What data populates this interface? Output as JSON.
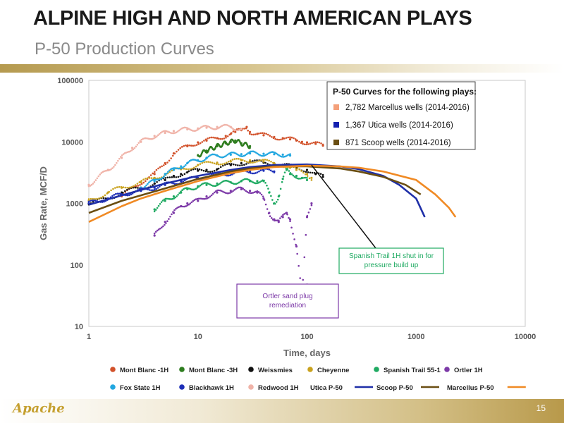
{
  "slide": {
    "title": "ALPINE HIGH AND NORTH AMERICAN PLAYS",
    "subtitle": "P-50 Production Curves",
    "logo_text": "Apache",
    "page_number": "15"
  },
  "chart_data": {
    "type": "scatter",
    "xlabel": "Time, days",
    "ylabel": "Gas Rate, MCF/D",
    "x_scale": "log",
    "y_scale": "log",
    "xlim": [
      1,
      10000
    ],
    "ylim": [
      10,
      100000
    ],
    "x_ticks": [
      "1",
      "10",
      "100",
      "1000",
      "10000"
    ],
    "y_ticks": [
      "10",
      "100",
      "1000",
      "10000",
      "100000"
    ],
    "grid": false,
    "series": [
      {
        "name": "Mont Blanc -1H",
        "kind": "points",
        "color": "#d2522b",
        "x": [
          2,
          3,
          4,
          5,
          6,
          8,
          10,
          12,
          15,
          18,
          20,
          22,
          25,
          28,
          30,
          35,
          40,
          50,
          60,
          70,
          80,
          90,
          100,
          120,
          140
        ],
        "y": [
          1300,
          2200,
          3000,
          4500,
          6500,
          8500,
          9800,
          10500,
          11500,
          12500,
          13500,
          14500,
          15500,
          17500,
          14500,
          13500,
          12800,
          12000,
          11500,
          11000,
          10500,
          10000,
          9800,
          9300,
          8700
        ]
      },
      {
        "name": "Mont Blanc -3H",
        "kind": "points",
        "color": "#2e7d1f",
        "x": [
          10,
          12,
          15,
          18,
          20,
          22,
          25,
          30
        ],
        "y": [
          6000,
          7200,
          8500,
          9500,
          10000,
          10500,
          9500,
          8500
        ]
      },
      {
        "name": "Weissmies",
        "kind": "points",
        "color": "#111111",
        "x": [
          1,
          1.5,
          2,
          3,
          4,
          5,
          6,
          7,
          8,
          10,
          12,
          15,
          20,
          25,
          30,
          40,
          50,
          60,
          70,
          80,
          100,
          120,
          140
        ],
        "y": [
          1000,
          1200,
          1500,
          1800,
          2100,
          2400,
          2800,
          3000,
          3200,
          3400,
          3500,
          3600,
          4200,
          4500,
          4700,
          4600,
          4400,
          4200,
          4000,
          3800,
          3500,
          3000,
          2700
        ]
      },
      {
        "name": "Cheyenne",
        "kind": "points",
        "color": "#c9a21e",
        "x": [
          1,
          1.5,
          2,
          3,
          4,
          5,
          7,
          10,
          15,
          20,
          25,
          30,
          40,
          50,
          60,
          70,
          80,
          100,
          110
        ],
        "y": [
          1100,
          1500,
          1800,
          2200,
          2600,
          3000,
          3600,
          4200,
          4600,
          4800,
          5000,
          5000,
          4800,
          4500,
          4200,
          3800,
          3500,
          3000,
          2600
        ]
      },
      {
        "name": "Spanish Trail 55-1",
        "kind": "points",
        "color": "#1faa62",
        "x": [
          4,
          5,
          6,
          7,
          8,
          10,
          12,
          15,
          20,
          25,
          30,
          35,
          40,
          45,
          50,
          55,
          60,
          65,
          70,
          80,
          90,
          100
        ],
        "y": [
          800,
          1100,
          1300,
          1500,
          1700,
          1900,
          2000,
          2100,
          2200,
          2300,
          2300,
          2300,
          2300,
          1500,
          1000,
          1300,
          2500,
          3500,
          3000,
          2800,
          2600,
          2400
        ]
      },
      {
        "name": "Ortler 1H",
        "kind": "points",
        "color": "#7d3aa8",
        "x": [
          4,
          5,
          6,
          7,
          8,
          10,
          12,
          15,
          20,
          25,
          30,
          35,
          40,
          45,
          50,
          55,
          60,
          65,
          70,
          80,
          90,
          100,
          110
        ],
        "y": [
          300,
          500,
          700,
          900,
          1000,
          1100,
          1300,
          1500,
          1600,
          1700,
          1600,
          1500,
          1200,
          700,
          550,
          500,
          600,
          700,
          550,
          200,
          30,
          600,
          1000
        ]
      },
      {
        "name": "Fox State 1H",
        "kind": "points",
        "color": "#22a7e0",
        "x": [
          3,
          4,
          5,
          6,
          7,
          8,
          10,
          12,
          15,
          20,
          25,
          30,
          40,
          50,
          60,
          70
        ],
        "y": [
          1800,
          2300,
          3000,
          3500,
          4000,
          4500,
          5000,
          5500,
          6000,
          6200,
          6300,
          6500,
          6400,
          6300,
          6200,
          6000
        ]
      },
      {
        "name": "Blackhawk 1H",
        "kind": "points",
        "color": "#1e2fb8",
        "x": [
          1,
          1.5,
          2,
          3,
          4,
          5,
          7,
          10,
          15,
          20,
          30,
          40,
          50
        ],
        "y": [
          1000,
          1200,
          1400,
          1600,
          1800,
          2000,
          2300,
          2600,
          2900,
          3100,
          3300,
          3400,
          3300
        ]
      },
      {
        "name": "Redwood 1H",
        "kind": "points",
        "color": "#f0b3a8",
        "x": [
          1,
          1.5,
          2,
          2.5,
          3,
          4,
          5,
          6,
          8,
          10,
          12,
          15,
          20,
          25
        ],
        "y": [
          2000,
          3500,
          5500,
          8000,
          10000,
          12500,
          14000,
          15000,
          16000,
          16500,
          17000,
          17500,
          17500,
          16000
        ]
      },
      {
        "name": "Utica P-50",
        "kind": "line",
        "color": "#1f2fa8",
        "x": [
          1,
          2,
          3,
          5,
          10,
          20,
          30,
          50,
          100,
          200,
          300,
          500,
          700,
          1000,
          1200
        ],
        "y": [
          950,
          1350,
          1650,
          2100,
          2800,
          3500,
          3900,
          4200,
          4300,
          4000,
          3600,
          2800,
          2000,
          1200,
          600
        ]
      },
      {
        "name": "Scoop P-50",
        "kind": "line",
        "color": "#6a4e12",
        "x": [
          1,
          2,
          3,
          5,
          10,
          20,
          30,
          50,
          100,
          200,
          300,
          500,
          800,
          1100
        ],
        "y": [
          700,
          1100,
          1350,
          1750,
          2500,
          3300,
          3700,
          4000,
          4000,
          3700,
          3300,
          2700,
          2000,
          1400
        ]
      },
      {
        "name": "Marcellus P-50",
        "kind": "line",
        "color": "#f08a24",
        "x": [
          1,
          2,
          3,
          5,
          10,
          20,
          30,
          50,
          100,
          200,
          300,
          500,
          1000,
          1500,
          2000,
          2300
        ],
        "y": [
          500,
          900,
          1200,
          1600,
          2300,
          3100,
          3500,
          3900,
          4100,
          4000,
          3800,
          3300,
          2400,
          1400,
          850,
          600
        ]
      }
    ],
    "legend_box": {
      "title": "P-50 Curves for the following plays:",
      "items": [
        {
          "label": "2,782 Marcellus wells (2014-2016)",
          "color": "#f4a07a"
        },
        {
          "label": "1,367 Utica wells (2014-2016)",
          "color": "#1420b0"
        },
        {
          "label": "871 Scoop wells (2014-2016)",
          "color": "#6a4e12"
        }
      ]
    },
    "annotations": [
      {
        "text_lines": [
          "Spanish Trail 1H shut in for",
          "pressure build up"
        ],
        "color": "#1faa62",
        "target_x": 110,
        "target_y": 4200
      },
      {
        "text_lines": [
          "Ortler sand plug",
          "remediation"
        ],
        "color": "#7d3aa8",
        "target_x": 100,
        "target_y": 50
      }
    ]
  }
}
